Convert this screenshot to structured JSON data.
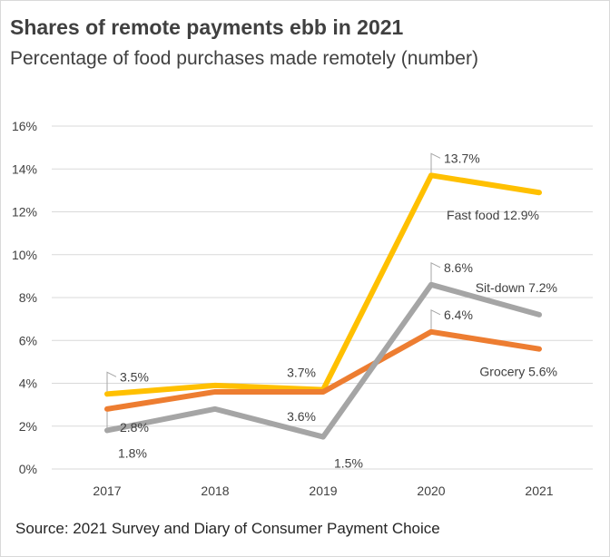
{
  "chart_data": {
    "type": "line",
    "title": "Shares of remote payments ebb in 2021",
    "subtitle": "Percentage of food purchases made remotely  (number)",
    "source": "Source: 2021 Survey and Diary of Consumer Payment Choice",
    "categories": [
      "2017",
      "2018",
      "2019",
      "2020",
      "2021"
    ],
    "ylim": [
      0,
      16
    ],
    "yticks": [
      "0%",
      "2%",
      "4%",
      "6%",
      "8%",
      "10%",
      "12%",
      "14%",
      "16%"
    ],
    "grid": true,
    "legend": "none (end-of-line labels)",
    "series": [
      {
        "name": "Fast food",
        "color": "#FFC000",
        "values": [
          3.5,
          3.9,
          3.7,
          13.7,
          12.9
        ],
        "labels": [
          "3.5%",
          null,
          "3.7%",
          "13.7%",
          "Fast food 12.9%"
        ]
      },
      {
        "name": "Grocery",
        "color": "#ED7D31",
        "values": [
          2.8,
          3.6,
          3.6,
          6.4,
          5.6
        ],
        "labels": [
          "2.8%",
          null,
          "3.6%",
          "6.4%",
          "Grocery 5.6%"
        ]
      },
      {
        "name": "Sit-down",
        "color": "#A5A5A5",
        "values": [
          1.8,
          2.8,
          1.5,
          8.6,
          7.2
        ],
        "labels": [
          "1.8%",
          null,
          "1.5%",
          "8.6%",
          "Sit-down 7.2%"
        ]
      }
    ]
  }
}
